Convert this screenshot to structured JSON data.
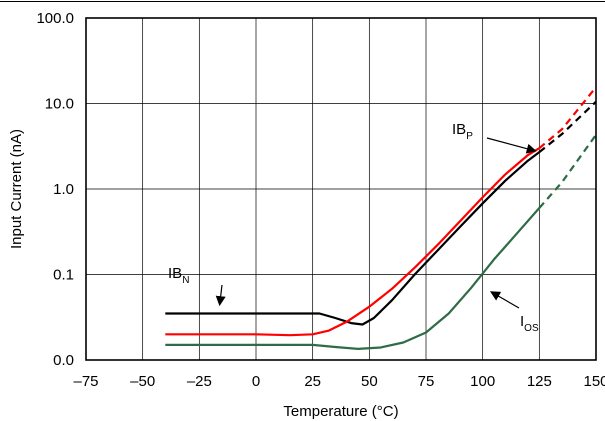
{
  "chart_data": {
    "type": "line",
    "title": "",
    "xlabel": "Temperature (°C)",
    "ylabel": "Input Current (nA)",
    "xlim": [
      -75,
      150
    ],
    "ylim": [
      0.01,
      100
    ],
    "y_scale": "log",
    "grid": true,
    "legend": "none",
    "x_ticks": [
      -75,
      -50,
      -25,
      0,
      25,
      50,
      75,
      100,
      125,
      150
    ],
    "x_tick_labels": [
      "–75",
      "–50",
      "–25",
      "0",
      "25",
      "50",
      "75",
      "100",
      "125",
      "150"
    ],
    "y_ticks": [
      0.01,
      0.1,
      1,
      10,
      100
    ],
    "y_tick_labels": [
      "0.0",
      "0.1",
      "1.0",
      "10.0",
      "100.0"
    ],
    "series": [
      {
        "color": "#000000",
        "points": [
          [
            -40,
            0.035
          ],
          [
            -20,
            0.035
          ],
          [
            0,
            0.035
          ],
          [
            20,
            0.035
          ],
          [
            28,
            0.035
          ],
          [
            35,
            0.031
          ],
          [
            42,
            0.027
          ],
          [
            47,
            0.026
          ],
          [
            52,
            0.031
          ],
          [
            60,
            0.05
          ],
          [
            70,
            0.1
          ],
          [
            80,
            0.19
          ],
          [
            90,
            0.36
          ],
          [
            100,
            0.68
          ],
          [
            110,
            1.25
          ],
          [
            120,
            2.15
          ],
          [
            125,
            2.7
          ]
        ],
        "extrapolated": [
          [
            125,
            2.7
          ],
          [
            135,
            4.4
          ],
          [
            150,
            10.5
          ]
        ]
      },
      {
        "color": "#ff0000",
        "points": [
          [
            -40,
            0.02
          ],
          [
            -20,
            0.02
          ],
          [
            0,
            0.02
          ],
          [
            15,
            0.0195
          ],
          [
            25,
            0.02
          ],
          [
            32,
            0.022
          ],
          [
            40,
            0.028
          ],
          [
            50,
            0.042
          ],
          [
            60,
            0.068
          ],
          [
            70,
            0.12
          ],
          [
            80,
            0.22
          ],
          [
            90,
            0.42
          ],
          [
            100,
            0.8
          ],
          [
            110,
            1.48
          ],
          [
            120,
            2.5
          ],
          [
            125,
            3.0
          ]
        ],
        "extrapolated": [
          [
            125,
            3.0
          ],
          [
            135,
            5.0
          ],
          [
            150,
            15.5
          ]
        ]
      },
      {
        "color": "#2e6b46",
        "points": [
          [
            -40,
            0.015
          ],
          [
            0,
            0.015
          ],
          [
            25,
            0.015
          ],
          [
            35,
            0.0142
          ],
          [
            45,
            0.0135
          ],
          [
            55,
            0.014
          ],
          [
            65,
            0.016
          ],
          [
            75,
            0.021
          ],
          [
            85,
            0.035
          ],
          [
            95,
            0.07
          ],
          [
            105,
            0.15
          ],
          [
            115,
            0.3
          ],
          [
            125,
            0.6
          ]
        ],
        "extrapolated": [
          [
            125,
            0.6
          ],
          [
            135,
            1.2
          ],
          [
            150,
            4.3
          ]
        ]
      }
    ],
    "annotations": [
      {
        "main": "IB",
        "sub": "N",
        "target": [
          -16,
          0.045
        ]
      },
      {
        "main": "IB",
        "sub": "P",
        "target": [
          123,
          2.8
        ]
      },
      {
        "main": "I",
        "sub": "OS",
        "target": [
          104,
          0.062
        ]
      }
    ]
  }
}
